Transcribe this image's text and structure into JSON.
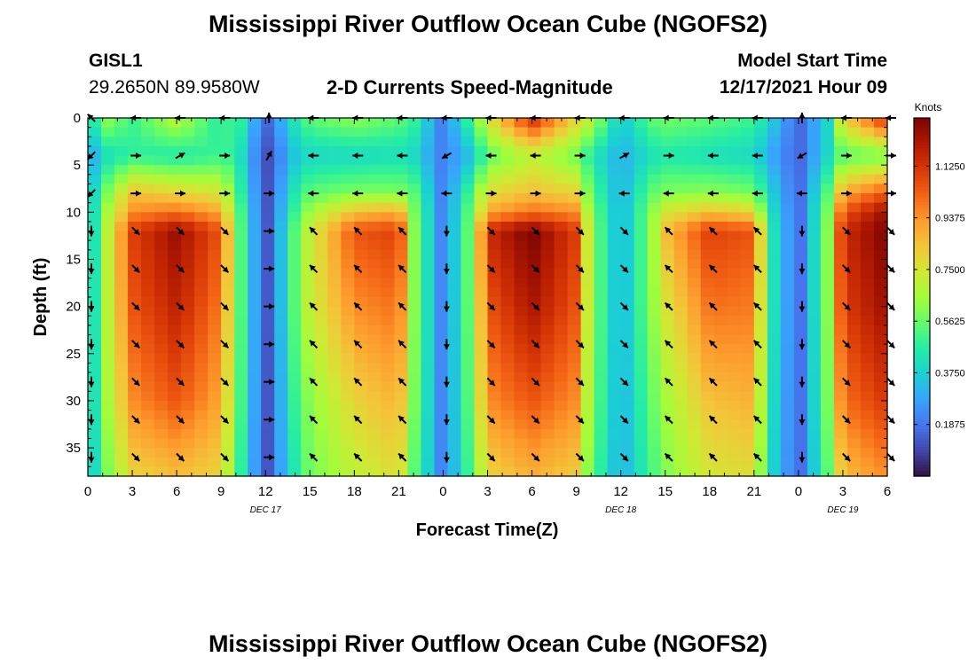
{
  "page": {
    "title": "Mississippi River Outflow Ocean Cube (NGOFS2)",
    "station_id": "GISL1",
    "location": "29.2650N  89.9580W",
    "subtitle": "2-D Currents Speed-Magnitude",
    "model_start_label": "Model Start Time",
    "model_start_value": "12/17/2021 Hour 09",
    "second_title": "Mississippi River Outflow Ocean Cube (NGOFS2)"
  },
  "colors": {
    "background": "#ffffff",
    "text": "#000000",
    "colormap": [
      "#30123b",
      "#4145ab",
      "#4675ed",
      "#39a2fc",
      "#1bcfd4",
      "#24eca6",
      "#61fc6c",
      "#a4fc3b",
      "#d1e834",
      "#f3c63a",
      "#fe9b2d",
      "#f36315",
      "#d93806",
      "#b11901",
      "#7a0402"
    ]
  },
  "chart_data": {
    "type": "heatmap",
    "title": "2-D Currents Speed-Magnitude",
    "xlabel": "Forecast Time(Z)",
    "ylabel": "Depth (ft)",
    "x_range_hours": [
      0,
      54
    ],
    "ylim": [
      38,
      0
    ],
    "x_ticks": [
      0,
      3,
      6,
      9,
      12,
      15,
      18,
      21,
      24,
      27,
      30,
      33,
      36,
      39,
      42,
      45,
      48,
      51,
      54
    ],
    "x_tick_labels": [
      "0",
      "3",
      "6",
      "9",
      "12",
      "15",
      "18",
      "21",
      "0",
      "3",
      "6",
      "9",
      "12",
      "15",
      "18",
      "21",
      "0",
      "3",
      "6"
    ],
    "y_ticks": [
      0,
      5,
      10,
      15,
      20,
      25,
      30,
      35
    ],
    "y_tick_labels": [
      "0",
      "5",
      "10",
      "15",
      "20",
      "25",
      "30",
      "35"
    ],
    "date_labels": [
      {
        "hour": 12,
        "text": "DEC 17"
      },
      {
        "hour": 36,
        "text": "DEC 18"
      },
      {
        "hour": 51,
        "text": "DEC 19"
      }
    ],
    "colorbar": {
      "unit": "Knots",
      "min": 0.0,
      "max": 1.3,
      "ticks": [
        0.1875,
        0.375,
        0.5625,
        0.75,
        0.9375,
        1.125
      ],
      "tick_labels": [
        "0.1875",
        "0.3750",
        "0.5625",
        "0.7500",
        "0.9375",
        "1.1250"
      ]
    },
    "field": {
      "x_hours": [
        0,
        1,
        3,
        6,
        9,
        10,
        12,
        14,
        15,
        18,
        21,
        22,
        24,
        26,
        27,
        30,
        33,
        34,
        36,
        38,
        39,
        42,
        45,
        46,
        48,
        50,
        51,
        54
      ],
      "depth_ft": [
        0,
        4,
        8,
        10,
        12,
        20,
        30,
        38
      ],
      "speed_knots": [
        [
          0.35,
          0.65,
          0.5,
          0.7,
          0.45,
          0.55,
          0.15,
          0.45,
          0.55,
          0.62,
          0.55,
          0.5,
          0.2,
          0.55,
          0.75,
          1.15,
          0.8,
          0.7,
          0.35,
          0.55,
          0.58,
          0.55,
          0.5,
          0.4,
          0.15,
          0.4,
          0.8,
          1.15
        ],
        [
          0.25,
          0.4,
          0.48,
          0.45,
          0.5,
          0.48,
          0.1,
          0.35,
          0.4,
          0.4,
          0.42,
          0.4,
          0.2,
          0.35,
          0.55,
          0.7,
          0.58,
          0.45,
          0.3,
          0.42,
          0.45,
          0.42,
          0.4,
          0.3,
          0.15,
          0.4,
          0.55,
          0.58
        ],
        [
          0.3,
          0.55,
          0.85,
          0.8,
          0.75,
          0.55,
          0.1,
          0.45,
          0.55,
          0.6,
          0.6,
          0.55,
          0.2,
          0.55,
          0.78,
          0.85,
          0.8,
          0.55,
          0.3,
          0.55,
          0.6,
          0.62,
          0.58,
          0.4,
          0.15,
          0.55,
          0.9,
          1.05
        ],
        [
          0.3,
          0.6,
          0.95,
          1.0,
          0.9,
          0.6,
          0.1,
          0.5,
          0.65,
          0.85,
          0.9,
          0.6,
          0.2,
          0.6,
          0.9,
          1.0,
          0.95,
          0.6,
          0.3,
          0.6,
          0.75,
          0.85,
          0.8,
          0.45,
          0.15,
          0.6,
          1.05,
          1.25
        ],
        [
          0.3,
          0.62,
          1.1,
          1.25,
          1.05,
          0.62,
          0.1,
          0.55,
          0.72,
          1.05,
          1.1,
          0.62,
          0.2,
          0.62,
          1.15,
          1.3,
          1.1,
          0.62,
          0.3,
          0.6,
          0.85,
          1.1,
          1.05,
          0.48,
          0.15,
          0.62,
          1.15,
          1.3
        ],
        [
          0.3,
          0.62,
          1.05,
          1.18,
          0.98,
          0.62,
          0.1,
          0.55,
          0.72,
          0.95,
          1.0,
          0.62,
          0.2,
          0.62,
          1.05,
          1.22,
          1.05,
          0.62,
          0.3,
          0.6,
          0.75,
          1.0,
          0.98,
          0.48,
          0.15,
          0.62,
          1.1,
          1.25
        ],
        [
          0.3,
          0.6,
          0.95,
          1.05,
          0.9,
          0.6,
          0.1,
          0.5,
          0.62,
          0.8,
          0.88,
          0.6,
          0.2,
          0.6,
          0.95,
          1.05,
          0.95,
          0.6,
          0.3,
          0.55,
          0.65,
          0.85,
          0.88,
          0.45,
          0.15,
          0.6,
          1.0,
          1.12
        ],
        [
          0.3,
          0.55,
          0.8,
          0.85,
          0.8,
          0.55,
          0.1,
          0.45,
          0.58,
          0.7,
          0.78,
          0.55,
          0.2,
          0.55,
          0.8,
          0.88,
          0.82,
          0.55,
          0.3,
          0.5,
          0.6,
          0.75,
          0.78,
          0.42,
          0.15,
          0.55,
          0.85,
          0.95
        ]
      ],
      "vectors": {
        "x_hours": [
          0,
          3,
          6,
          9,
          12,
          15,
          18,
          21,
          24,
          27,
          30,
          33,
          36,
          39,
          42,
          45,
          48,
          51,
          54
        ],
        "depth_ft": [
          0,
          4,
          8,
          12,
          16,
          20,
          24,
          28,
          32,
          36
        ],
        "direction_deg": {
          "surface_0ft": [
            315,
            270,
            270,
            270,
            0,
            270,
            270,
            270,
            270,
            270,
            270,
            270,
            270,
            270,
            270,
            270,
            0,
            270,
            270
          ],
          "ft4": [
            225,
            90,
            60,
            90,
            30,
            270,
            270,
            270,
            240,
            270,
            270,
            90,
            60,
            90,
            270,
            270,
            240,
            90,
            90
          ],
          "ft8": [
            225,
            90,
            90,
            90,
            90,
            270,
            270,
            270,
            270,
            90,
            90,
            90,
            270,
            270,
            270,
            270,
            270,
            90,
            90
          ],
          "deep_ft12_36": [
            180,
            135,
            135,
            135,
            90,
            315,
            315,
            315,
            180,
            135,
            135,
            135,
            135,
            315,
            315,
            315,
            180,
            135,
            135
          ]
        }
      }
    }
  }
}
